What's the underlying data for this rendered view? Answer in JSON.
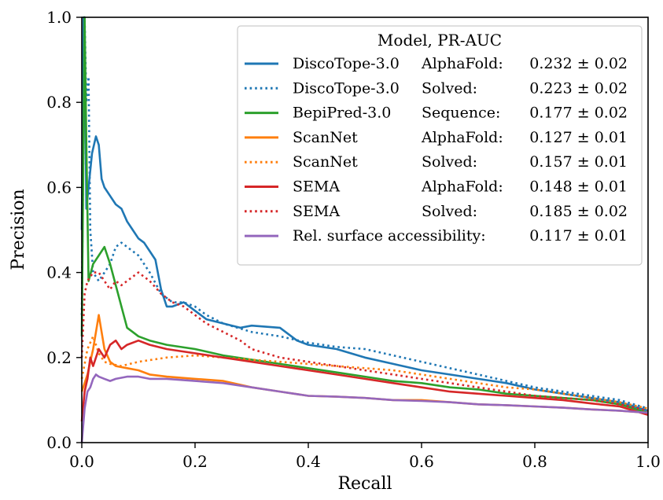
{
  "chart_data": {
    "type": "line",
    "title": "",
    "xlabel": "Recall",
    "ylabel": "Precision",
    "xlim": [
      0,
      1
    ],
    "ylim": [
      0,
      1
    ],
    "x_ticks": [
      "0.0",
      "0.2",
      "0.4",
      "0.6",
      "0.8",
      "1.0"
    ],
    "y_ticks": [
      "0.0",
      "0.2",
      "0.4",
      "0.6",
      "0.8",
      "1.0"
    ],
    "grid": false,
    "legend": {
      "title": "Model, PR-AUC",
      "placement": "top-right",
      "entries": [
        {
          "model": "DiscoTope-3.0",
          "structure": "AlphaFold:",
          "score": "0.232 ±  0.02"
        },
        {
          "model": "DiscoTope-3.0",
          "structure": "Solved:",
          "score": "0.223 ± 0.02"
        },
        {
          "model": "BepiPred-3.0",
          "structure": "Sequence:",
          "score": "0.177 ± 0.02"
        },
        {
          "model": "ScanNet",
          "structure": "AlphaFold:",
          "score": "0.127 ± 0.01"
        },
        {
          "model": "ScanNet",
          "structure": "Solved:",
          "score": "0.157 ± 0.01"
        },
        {
          "model": "SEMA",
          "structure": "AlphaFold:",
          "score": "0.148 ± 0.01"
        },
        {
          "model": "SEMA",
          "structure": "Solved:",
          "score": "0.185 ± 0.02"
        },
        {
          "model": "Rel. surface accessibility:",
          "structure": "",
          "score": "0.117 ± 0.01"
        }
      ]
    },
    "series": [
      {
        "color": "#1f77b4",
        "style": "solid",
        "points": [
          [
            0.0,
            0.5
          ],
          [
            0.003,
            1.0
          ],
          [
            0.006,
            0.85
          ],
          [
            0.008,
            0.55
          ],
          [
            0.012,
            0.6
          ],
          [
            0.018,
            0.68
          ],
          [
            0.025,
            0.72
          ],
          [
            0.03,
            0.7
          ],
          [
            0.035,
            0.62
          ],
          [
            0.04,
            0.6
          ],
          [
            0.05,
            0.58
          ],
          [
            0.06,
            0.56
          ],
          [
            0.07,
            0.55
          ],
          [
            0.08,
            0.52
          ],
          [
            0.09,
            0.5
          ],
          [
            0.1,
            0.48
          ],
          [
            0.11,
            0.47
          ],
          [
            0.12,
            0.45
          ],
          [
            0.13,
            0.43
          ],
          [
            0.14,
            0.36
          ],
          [
            0.15,
            0.32
          ],
          [
            0.16,
            0.32
          ],
          [
            0.18,
            0.33
          ],
          [
            0.2,
            0.31
          ],
          [
            0.22,
            0.29
          ],
          [
            0.25,
            0.28
          ],
          [
            0.28,
            0.27
          ],
          [
            0.3,
            0.275
          ],
          [
            0.35,
            0.27
          ],
          [
            0.38,
            0.24
          ],
          [
            0.4,
            0.23
          ],
          [
            0.45,
            0.22
          ],
          [
            0.5,
            0.2
          ],
          [
            0.55,
            0.185
          ],
          [
            0.6,
            0.17
          ],
          [
            0.65,
            0.16
          ],
          [
            0.7,
            0.15
          ],
          [
            0.75,
            0.14
          ],
          [
            0.8,
            0.125
          ],
          [
            0.85,
            0.115
          ],
          [
            0.9,
            0.105
          ],
          [
            0.95,
            0.095
          ],
          [
            1.0,
            0.075
          ]
        ]
      },
      {
        "color": "#1f77b4",
        "style": "dotted",
        "points": [
          [
            0.0,
            0.3
          ],
          [
            0.005,
            1.0
          ],
          [
            0.008,
            0.8
          ],
          [
            0.012,
            0.86
          ],
          [
            0.015,
            0.5
          ],
          [
            0.02,
            0.4
          ],
          [
            0.03,
            0.38
          ],
          [
            0.04,
            0.4
          ],
          [
            0.05,
            0.42
          ],
          [
            0.06,
            0.46
          ],
          [
            0.07,
            0.47
          ],
          [
            0.08,
            0.46
          ],
          [
            0.1,
            0.44
          ],
          [
            0.12,
            0.4
          ],
          [
            0.14,
            0.35
          ],
          [
            0.16,
            0.33
          ],
          [
            0.18,
            0.33
          ],
          [
            0.2,
            0.32
          ],
          [
            0.22,
            0.3
          ],
          [
            0.25,
            0.28
          ],
          [
            0.3,
            0.26
          ],
          [
            0.35,
            0.25
          ],
          [
            0.4,
            0.235
          ],
          [
            0.45,
            0.225
          ],
          [
            0.5,
            0.22
          ],
          [
            0.55,
            0.205
          ],
          [
            0.6,
            0.19
          ],
          [
            0.65,
            0.175
          ],
          [
            0.7,
            0.16
          ],
          [
            0.75,
            0.145
          ],
          [
            0.8,
            0.13
          ],
          [
            0.85,
            0.12
          ],
          [
            0.9,
            0.11
          ],
          [
            0.95,
            0.1
          ],
          [
            1.0,
            0.08
          ]
        ]
      },
      {
        "color": "#2ca02c",
        "style": "solid",
        "points": [
          [
            0.0,
            0.25
          ],
          [
            0.005,
            1.0
          ],
          [
            0.008,
            0.7
          ],
          [
            0.012,
            0.38
          ],
          [
            0.02,
            0.42
          ],
          [
            0.03,
            0.44
          ],
          [
            0.04,
            0.46
          ],
          [
            0.05,
            0.42
          ],
          [
            0.06,
            0.37
          ],
          [
            0.07,
            0.32
          ],
          [
            0.08,
            0.27
          ],
          [
            0.09,
            0.26
          ],
          [
            0.1,
            0.25
          ],
          [
            0.12,
            0.24
          ],
          [
            0.15,
            0.23
          ],
          [
            0.2,
            0.22
          ],
          [
            0.25,
            0.205
          ],
          [
            0.3,
            0.195
          ],
          [
            0.35,
            0.185
          ],
          [
            0.4,
            0.175
          ],
          [
            0.45,
            0.165
          ],
          [
            0.5,
            0.155
          ],
          [
            0.55,
            0.145
          ],
          [
            0.6,
            0.14
          ],
          [
            0.65,
            0.13
          ],
          [
            0.7,
            0.125
          ],
          [
            0.75,
            0.115
          ],
          [
            0.8,
            0.11
          ],
          [
            0.85,
            0.105
          ],
          [
            0.9,
            0.1
          ],
          [
            0.95,
            0.09
          ],
          [
            1.0,
            0.07
          ]
        ]
      },
      {
        "color": "#ff7f0e",
        "style": "solid",
        "points": [
          [
            0.0,
            0.12
          ],
          [
            0.01,
            0.16
          ],
          [
            0.02,
            0.22
          ],
          [
            0.03,
            0.3
          ],
          [
            0.035,
            0.26
          ],
          [
            0.04,
            0.22
          ],
          [
            0.05,
            0.19
          ],
          [
            0.06,
            0.18
          ],
          [
            0.08,
            0.175
          ],
          [
            0.1,
            0.17
          ],
          [
            0.12,
            0.16
          ],
          [
            0.15,
            0.155
          ],
          [
            0.2,
            0.15
          ],
          [
            0.25,
            0.145
          ],
          [
            0.3,
            0.13
          ],
          [
            0.35,
            0.12
          ],
          [
            0.4,
            0.11
          ],
          [
            0.45,
            0.108
          ],
          [
            0.5,
            0.105
          ],
          [
            0.55,
            0.1
          ],
          [
            0.6,
            0.1
          ],
          [
            0.65,
            0.095
          ],
          [
            0.7,
            0.09
          ],
          [
            0.75,
            0.088
          ],
          [
            0.8,
            0.085
          ],
          [
            0.85,
            0.082
          ],
          [
            0.9,
            0.078
          ],
          [
            0.95,
            0.075
          ],
          [
            1.0,
            0.07
          ]
        ]
      },
      {
        "color": "#ff7f0e",
        "style": "dotted",
        "points": [
          [
            0.0,
            0.15
          ],
          [
            0.01,
            0.22
          ],
          [
            0.02,
            0.25
          ],
          [
            0.03,
            0.21
          ],
          [
            0.04,
            0.19
          ],
          [
            0.05,
            0.185
          ],
          [
            0.07,
            0.18
          ],
          [
            0.1,
            0.19
          ],
          [
            0.15,
            0.2
          ],
          [
            0.2,
            0.205
          ],
          [
            0.25,
            0.2
          ],
          [
            0.3,
            0.195
          ],
          [
            0.35,
            0.19
          ],
          [
            0.4,
            0.185
          ],
          [
            0.45,
            0.18
          ],
          [
            0.5,
            0.175
          ],
          [
            0.55,
            0.17
          ],
          [
            0.6,
            0.16
          ],
          [
            0.65,
            0.15
          ],
          [
            0.7,
            0.14
          ],
          [
            0.75,
            0.13
          ],
          [
            0.8,
            0.125
          ],
          [
            0.85,
            0.115
          ],
          [
            0.9,
            0.105
          ],
          [
            0.95,
            0.095
          ],
          [
            1.0,
            0.08
          ]
        ]
      },
      {
        "color": "#d62728",
        "style": "solid",
        "points": [
          [
            0.0,
            0.05
          ],
          [
            0.005,
            0.12
          ],
          [
            0.01,
            0.15
          ],
          [
            0.015,
            0.2
          ],
          [
            0.02,
            0.18
          ],
          [
            0.03,
            0.22
          ],
          [
            0.04,
            0.2
          ],
          [
            0.05,
            0.23
          ],
          [
            0.06,
            0.24
          ],
          [
            0.07,
            0.22
          ],
          [
            0.08,
            0.23
          ],
          [
            0.1,
            0.24
          ],
          [
            0.12,
            0.23
          ],
          [
            0.15,
            0.22
          ],
          [
            0.2,
            0.21
          ],
          [
            0.25,
            0.2
          ],
          [
            0.3,
            0.19
          ],
          [
            0.35,
            0.18
          ],
          [
            0.4,
            0.17
          ],
          [
            0.45,
            0.16
          ],
          [
            0.5,
            0.15
          ],
          [
            0.55,
            0.14
          ],
          [
            0.6,
            0.13
          ],
          [
            0.65,
            0.12
          ],
          [
            0.7,
            0.115
          ],
          [
            0.75,
            0.11
          ],
          [
            0.8,
            0.105
          ],
          [
            0.85,
            0.1
          ],
          [
            0.9,
            0.092
          ],
          [
            0.95,
            0.085
          ],
          [
            1.0,
            0.065
          ]
        ]
      },
      {
        "color": "#d62728",
        "style": "dotted",
        "points": [
          [
            0.0,
            0.2
          ],
          [
            0.005,
            0.35
          ],
          [
            0.01,
            0.38
          ],
          [
            0.02,
            0.4
          ],
          [
            0.03,
            0.4
          ],
          [
            0.04,
            0.38
          ],
          [
            0.05,
            0.36
          ],
          [
            0.06,
            0.38
          ],
          [
            0.07,
            0.37
          ],
          [
            0.08,
            0.38
          ],
          [
            0.1,
            0.4
          ],
          [
            0.12,
            0.38
          ],
          [
            0.14,
            0.35
          ],
          [
            0.16,
            0.33
          ],
          [
            0.18,
            0.32
          ],
          [
            0.2,
            0.3
          ],
          [
            0.22,
            0.28
          ],
          [
            0.25,
            0.26
          ],
          [
            0.28,
            0.24
          ],
          [
            0.3,
            0.22
          ],
          [
            0.35,
            0.2
          ],
          [
            0.4,
            0.19
          ],
          [
            0.45,
            0.18
          ],
          [
            0.5,
            0.17
          ],
          [
            0.55,
            0.16
          ],
          [
            0.6,
            0.15
          ],
          [
            0.65,
            0.14
          ],
          [
            0.7,
            0.13
          ],
          [
            0.75,
            0.12
          ],
          [
            0.8,
            0.11
          ],
          [
            0.85,
            0.105
          ],
          [
            0.9,
            0.1
          ],
          [
            0.95,
            0.09
          ],
          [
            1.0,
            0.075
          ]
        ]
      },
      {
        "color": "#9467bd",
        "style": "solid",
        "points": [
          [
            0.0,
            0.0
          ],
          [
            0.005,
            0.08
          ],
          [
            0.01,
            0.12
          ],
          [
            0.015,
            0.13
          ],
          [
            0.02,
            0.15
          ],
          [
            0.025,
            0.16
          ],
          [
            0.03,
            0.155
          ],
          [
            0.04,
            0.15
          ],
          [
            0.05,
            0.145
          ],
          [
            0.06,
            0.15
          ],
          [
            0.08,
            0.155
          ],
          [
            0.1,
            0.155
          ],
          [
            0.12,
            0.15
          ],
          [
            0.15,
            0.15
          ],
          [
            0.2,
            0.145
          ],
          [
            0.25,
            0.14
          ],
          [
            0.3,
            0.13
          ],
          [
            0.35,
            0.12
          ],
          [
            0.4,
            0.11
          ],
          [
            0.45,
            0.108
          ],
          [
            0.5,
            0.105
          ],
          [
            0.55,
            0.1
          ],
          [
            0.6,
            0.098
          ],
          [
            0.65,
            0.095
          ],
          [
            0.7,
            0.09
          ],
          [
            0.75,
            0.088
          ],
          [
            0.8,
            0.085
          ],
          [
            0.85,
            0.082
          ],
          [
            0.9,
            0.078
          ],
          [
            0.95,
            0.075
          ],
          [
            1.0,
            0.07
          ]
        ]
      }
    ]
  }
}
